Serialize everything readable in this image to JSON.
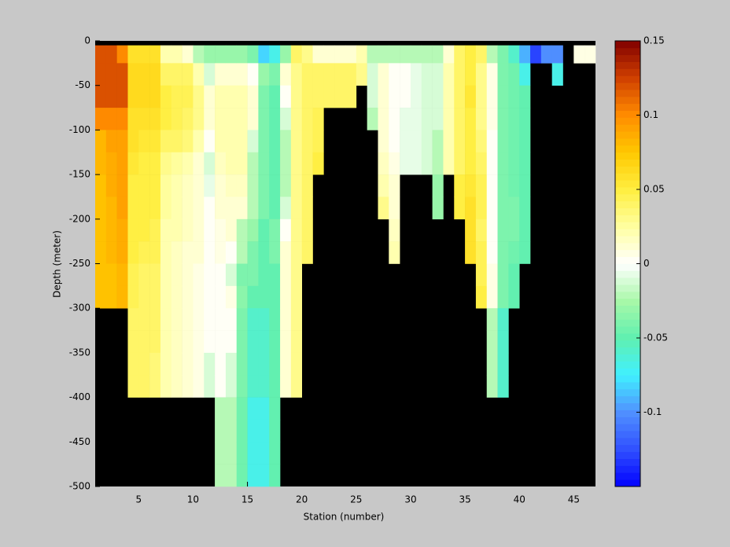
{
  "chart_data": {
    "type": "heatmap",
    "xlabel": "Station (number)",
    "ylabel": "Depth (meter)",
    "x": [
      1,
      2,
      3,
      4,
      5,
      6,
      7,
      8,
      9,
      10,
      11,
      12,
      13,
      14,
      15,
      16,
      17,
      18,
      19,
      20,
      21,
      22,
      23,
      24,
      25,
      26,
      27,
      28,
      29,
      30,
      31,
      32,
      33,
      34,
      35,
      36,
      37,
      38,
      39,
      40,
      41,
      42,
      43,
      44,
      45,
      46
    ],
    "ybins": [
      -5,
      -25,
      -50,
      -75,
      -100,
      -125,
      -150,
      -175,
      -200,
      -225,
      -250,
      -275,
      -300,
      -325,
      -350,
      -375,
      -400,
      -425,
      -450,
      -475,
      -500
    ],
    "xlim": [
      1,
      47
    ],
    "ylim": [
      -500,
      0
    ],
    "xticks": [
      5,
      10,
      15,
      20,
      25,
      30,
      35,
      40,
      45
    ],
    "yticks": [
      0,
      -50,
      -100,
      -150,
      -200,
      -250,
      -300,
      -350,
      -400,
      -450,
      -500
    ],
    "clim": [
      -0.15,
      0.15
    ],
    "cticks": [
      -0.1,
      -0.05,
      0,
      0.05,
      0.1,
      0.15
    ],
    "clevels": 64,
    "colormap": [
      "#0000ff",
      "#3050ff",
      "#5090ff",
      "#40f0ff",
      "#60f0b0",
      "#a8f8a8",
      "#ffffff",
      "#ffffa0",
      "#ffee40",
      "#ffc800",
      "#ff8c00",
      "#d04000",
      "#800000"
    ],
    "missing_color": "#000000",
    "z": [
      [
        0.12,
        0.12,
        0.12,
        0.1,
        0.08,
        0.08,
        0.075,
        0.075,
        0.075,
        0.075,
        0.075,
        0.075,
        null,
        null,
        null,
        null,
        null,
        null,
        null,
        null
      ],
      [
        0.12,
        0.12,
        0.12,
        0.1,
        0.09,
        0.085,
        0.085,
        0.08,
        0.08,
        0.08,
        0.075,
        0.075,
        null,
        null,
        null,
        null,
        null,
        null,
        null,
        null
      ],
      [
        0.1,
        0.12,
        0.12,
        0.1,
        0.09,
        0.09,
        0.09,
        0.09,
        0.085,
        0.085,
        0.08,
        0.08,
        null,
        null,
        null,
        null,
        null,
        null,
        null,
        null
      ],
      [
        0.06,
        0.065,
        0.065,
        0.06,
        0.06,
        0.055,
        0.05,
        0.05,
        0.05,
        0.05,
        0.045,
        0.045,
        0.04,
        0.04,
        0.04,
        0.04,
        null,
        null,
        null,
        null
      ],
      [
        0.06,
        0.065,
        0.065,
        0.06,
        0.055,
        0.05,
        0.05,
        0.05,
        0.05,
        0.045,
        0.04,
        0.04,
        0.04,
        0.04,
        0.04,
        0.04,
        null,
        null,
        null,
        null
      ],
      [
        0.06,
        0.065,
        0.065,
        0.06,
        0.055,
        0.05,
        0.05,
        0.05,
        0.045,
        0.045,
        0.04,
        0.04,
        0.04,
        0.04,
        0.035,
        0.035,
        null,
        null,
        null,
        null
      ],
      [
        0.02,
        0.04,
        0.05,
        0.05,
        0.04,
        0.03,
        0.025,
        0.025,
        0.02,
        0.02,
        0.02,
        0.02,
        0.02,
        0.02,
        0.02,
        0.02,
        null,
        null,
        null,
        null
      ],
      [
        0.02,
        0.04,
        0.045,
        0.045,
        0.04,
        0.025,
        0.02,
        0.02,
        0.02,
        0.015,
        0.015,
        0.015,
        0.015,
        0.015,
        0.015,
        0.015,
        null,
        null,
        null,
        null
      ],
      [
        0.01,
        0.04,
        0.045,
        0.04,
        0.035,
        0.02,
        0.015,
        0.015,
        0.015,
        0.01,
        0.01,
        0.01,
        0.01,
        0.01,
        0.01,
        0.01,
        null,
        null,
        null,
        null
      ],
      [
        -0.02,
        0.02,
        0.03,
        0.03,
        0.02,
        0.01,
        0.01,
        0.01,
        0.01,
        0.01,
        0.005,
        0.005,
        0.005,
        0.005,
        0.005,
        0.005,
        null,
        null,
        null,
        null
      ],
      [
        -0.03,
        -0.01,
        0.01,
        0.01,
        0,
        -0.01,
        -0.005,
        0,
        0,
        0,
        0,
        0,
        0,
        0,
        -0.01,
        -0.01,
        null,
        null,
        null,
        null
      ],
      [
        -0.03,
        0.01,
        0.02,
        0.02,
        0.02,
        0.015,
        0.01,
        0.01,
        0.005,
        0.005,
        0,
        0,
        0,
        0,
        0,
        0,
        -0.02,
        -0.02,
        -0.02,
        -0.02
      ],
      [
        -0.03,
        0.01,
        0.02,
        0.02,
        0.02,
        0.02,
        0.015,
        0.01,
        0.01,
        0,
        -0.01,
        0.005,
        0,
        0,
        -0.01,
        -0.01,
        -0.02,
        -0.02,
        -0.02,
        -0.02
      ],
      [
        -0.03,
        0.01,
        0.02,
        0.02,
        0.02,
        0.02,
        0.015,
        0.01,
        -0.02,
        -0.02,
        -0.04,
        -0.035,
        -0.04,
        -0.04,
        -0.04,
        -0.04,
        -0.045,
        -0.045,
        -0.045,
        -0.045
      ],
      [
        -0.04,
        0,
        0.01,
        0.01,
        -0.01,
        -0.02,
        -0.02,
        -0.02,
        -0.03,
        -0.04,
        -0.04,
        -0.05,
        -0.06,
        -0.06,
        -0.06,
        -0.06,
        -0.07,
        -0.07,
        -0.07,
        -0.07
      ],
      [
        -0.08,
        -0.03,
        -0.04,
        -0.04,
        -0.04,
        -0.04,
        -0.04,
        -0.04,
        -0.05,
        -0.05,
        -0.05,
        -0.05,
        -0.06,
        -0.06,
        -0.06,
        -0.06,
        -0.07,
        -0.07,
        -0.07,
        -0.07
      ],
      [
        -0.07,
        -0.04,
        -0.05,
        -0.05,
        -0.05,
        -0.05,
        -0.05,
        -0.05,
        -0.04,
        -0.04,
        -0.05,
        -0.05,
        -0.05,
        -0.05,
        -0.05,
        -0.05,
        -0.05,
        -0.05,
        -0.05,
        -0.05
      ],
      [
        -0.03,
        0.01,
        0,
        -0.01,
        -0.02,
        -0.02,
        -0.02,
        -0.01,
        0,
        0.01,
        0.01,
        0.01,
        0.01,
        0.01,
        0.01,
        0.01,
        null,
        null,
        null,
        null
      ],
      [
        0.04,
        0.03,
        0.03,
        0.03,
        0.03,
        0.03,
        0.03,
        0.03,
        0.03,
        0.03,
        0.03,
        0.03,
        0.03,
        0.03,
        0.03,
        0.03,
        null,
        null,
        null,
        null
      ],
      [
        0.03,
        0.04,
        0.04,
        0.04,
        0.04,
        0.04,
        0.04,
        0.04,
        0.04,
        0.04,
        null,
        null,
        null,
        null,
        null,
        null,
        null,
        null,
        null,
        null
      ],
      [
        0.01,
        0.04,
        0.04,
        0.045,
        0.045,
        0.05,
        null,
        null,
        null,
        null,
        null,
        null,
        null,
        null,
        null,
        null,
        null,
        null,
        null,
        null
      ],
      [
        0.01,
        0.04,
        0.04,
        null,
        null,
        null,
        null,
        null,
        null,
        null,
        null,
        null,
        null,
        null,
        null,
        null,
        null,
        null,
        null,
        null
      ],
      [
        0.01,
        0.04,
        0.04,
        null,
        null,
        null,
        null,
        null,
        null,
        null,
        null,
        null,
        null,
        null,
        null,
        null,
        null,
        null,
        null,
        null
      ],
      [
        0.01,
        0.04,
        0.04,
        null,
        null,
        null,
        null,
        null,
        null,
        null,
        null,
        null,
        null,
        null,
        null,
        null,
        null,
        null,
        null,
        null
      ],
      [
        0.02,
        0.03,
        null,
        null,
        null,
        null,
        null,
        null,
        null,
        null,
        null,
        null,
        null,
        null,
        null,
        null,
        null,
        null,
        null,
        null
      ],
      [
        -0.02,
        -0.01,
        -0.01,
        -0.02,
        null,
        null,
        null,
        null,
        null,
        null,
        null,
        null,
        null,
        null,
        null,
        null,
        null,
        null,
        null,
        null
      ],
      [
        -0.02,
        0.01,
        0.01,
        0.01,
        0.01,
        0.015,
        0.02,
        0.03,
        null,
        null,
        null,
        null,
        null,
        null,
        null,
        null,
        null,
        null,
        null,
        null
      ],
      [
        -0.02,
        0,
        0,
        0,
        0,
        0.005,
        0.01,
        0.01,
        0.015,
        0.02,
        null,
        null,
        null,
        null,
        null,
        null,
        null,
        null,
        null,
        null
      ],
      [
        -0.02,
        0,
        0,
        -0.005,
        -0.005,
        -0.005,
        null,
        null,
        null,
        null,
        null,
        null,
        null,
        null,
        null,
        null,
        null,
        null,
        null,
        null
      ],
      [
        -0.02,
        -0.005,
        -0.005,
        -0.005,
        -0.005,
        -0.005,
        null,
        null,
        null,
        null,
        null,
        null,
        null,
        null,
        null,
        null,
        null,
        null,
        null,
        null
      ],
      [
        -0.02,
        -0.01,
        -0.01,
        -0.01,
        -0.01,
        -0.01,
        null,
        null,
        null,
        null,
        null,
        null,
        null,
        null,
        null,
        null,
        null,
        null,
        null,
        null
      ],
      [
        -0.02,
        -0.01,
        -0.01,
        -0.01,
        -0.02,
        -0.02,
        -0.03,
        -0.03,
        null,
        null,
        null,
        null,
        null,
        null,
        null,
        null,
        null,
        null,
        null,
        null
      ],
      [
        0.01,
        0.02,
        0.02,
        0.02,
        0.02,
        0.02,
        null,
        null,
        null,
        null,
        null,
        null,
        null,
        null,
        null,
        null,
        null,
        null,
        null,
        null
      ],
      [
        0.04,
        0.04,
        0.04,
        0.04,
        0.04,
        0.04,
        0.05,
        0.05,
        null,
        null,
        null,
        null,
        null,
        null,
        null,
        null,
        null,
        null,
        null,
        null
      ],
      [
        0.05,
        0.05,
        0.055,
        0.05,
        0.05,
        0.05,
        0.055,
        0.06,
        0.06,
        0.06,
        null,
        null,
        null,
        null,
        null,
        null,
        null,
        null,
        null,
        null
      ],
      [
        0.04,
        0.03,
        0.03,
        0.03,
        0.035,
        0.04,
        0.045,
        0.045,
        0.04,
        0.045,
        0.045,
        0.05,
        null,
        null,
        null,
        null,
        null,
        null,
        null,
        null
      ],
      [
        -0.02,
        0.005,
        0.005,
        0.005,
        0,
        0,
        0,
        0,
        0,
        0,
        0.005,
        0.005,
        -0.02,
        -0.02,
        -0.02,
        -0.02,
        null,
        null,
        null,
        null
      ],
      [
        -0.04,
        -0.04,
        -0.04,
        -0.04,
        -0.04,
        -0.04,
        -0.04,
        -0.04,
        -0.04,
        -0.04,
        -0.04,
        -0.04,
        -0.06,
        -0.06,
        -0.06,
        -0.06,
        null,
        null,
        null,
        null
      ],
      [
        -0.06,
        -0.045,
        -0.045,
        -0.045,
        -0.045,
        -0.045,
        -0.045,
        -0.04,
        -0.04,
        -0.045,
        -0.05,
        -0.05,
        null,
        null,
        null,
        null,
        null,
        null,
        null,
        null
      ],
      [
        -0.09,
        -0.07,
        -0.05,
        -0.05,
        -0.05,
        -0.05,
        -0.05,
        -0.05,
        -0.05,
        -0.05,
        null,
        null,
        null,
        null,
        null,
        null,
        null,
        null,
        null,
        null
      ],
      [
        -0.13,
        null,
        null,
        null,
        null,
        null,
        null,
        null,
        null,
        null,
        null,
        null,
        null,
        null,
        null,
        null,
        null,
        null,
        null,
        null
      ],
      [
        -0.1,
        null,
        null,
        null,
        null,
        null,
        null,
        null,
        null,
        null,
        null,
        null,
        null,
        null,
        null,
        null,
        null,
        null,
        null,
        null
      ],
      [
        -0.1,
        -0.07,
        null,
        null,
        null,
        null,
        null,
        null,
        null,
        null,
        null,
        null,
        null,
        null,
        null,
        null,
        null,
        null,
        null,
        null
      ],
      [
        null,
        null,
        null,
        null,
        null,
        null,
        null,
        null,
        null,
        null,
        null,
        null,
        null,
        null,
        null,
        null,
        null,
        null,
        null,
        null
      ],
      [
        0.005,
        null,
        null,
        null,
        null,
        null,
        null,
        null,
        null,
        null,
        null,
        null,
        null,
        null,
        null,
        null,
        null,
        null,
        null,
        null
      ],
      [
        0.005,
        null,
        null,
        null,
        null,
        null,
        null,
        null,
        null,
        null,
        null,
        null,
        null,
        null,
        null,
        null,
        null,
        null,
        null,
        null
      ]
    ]
  }
}
